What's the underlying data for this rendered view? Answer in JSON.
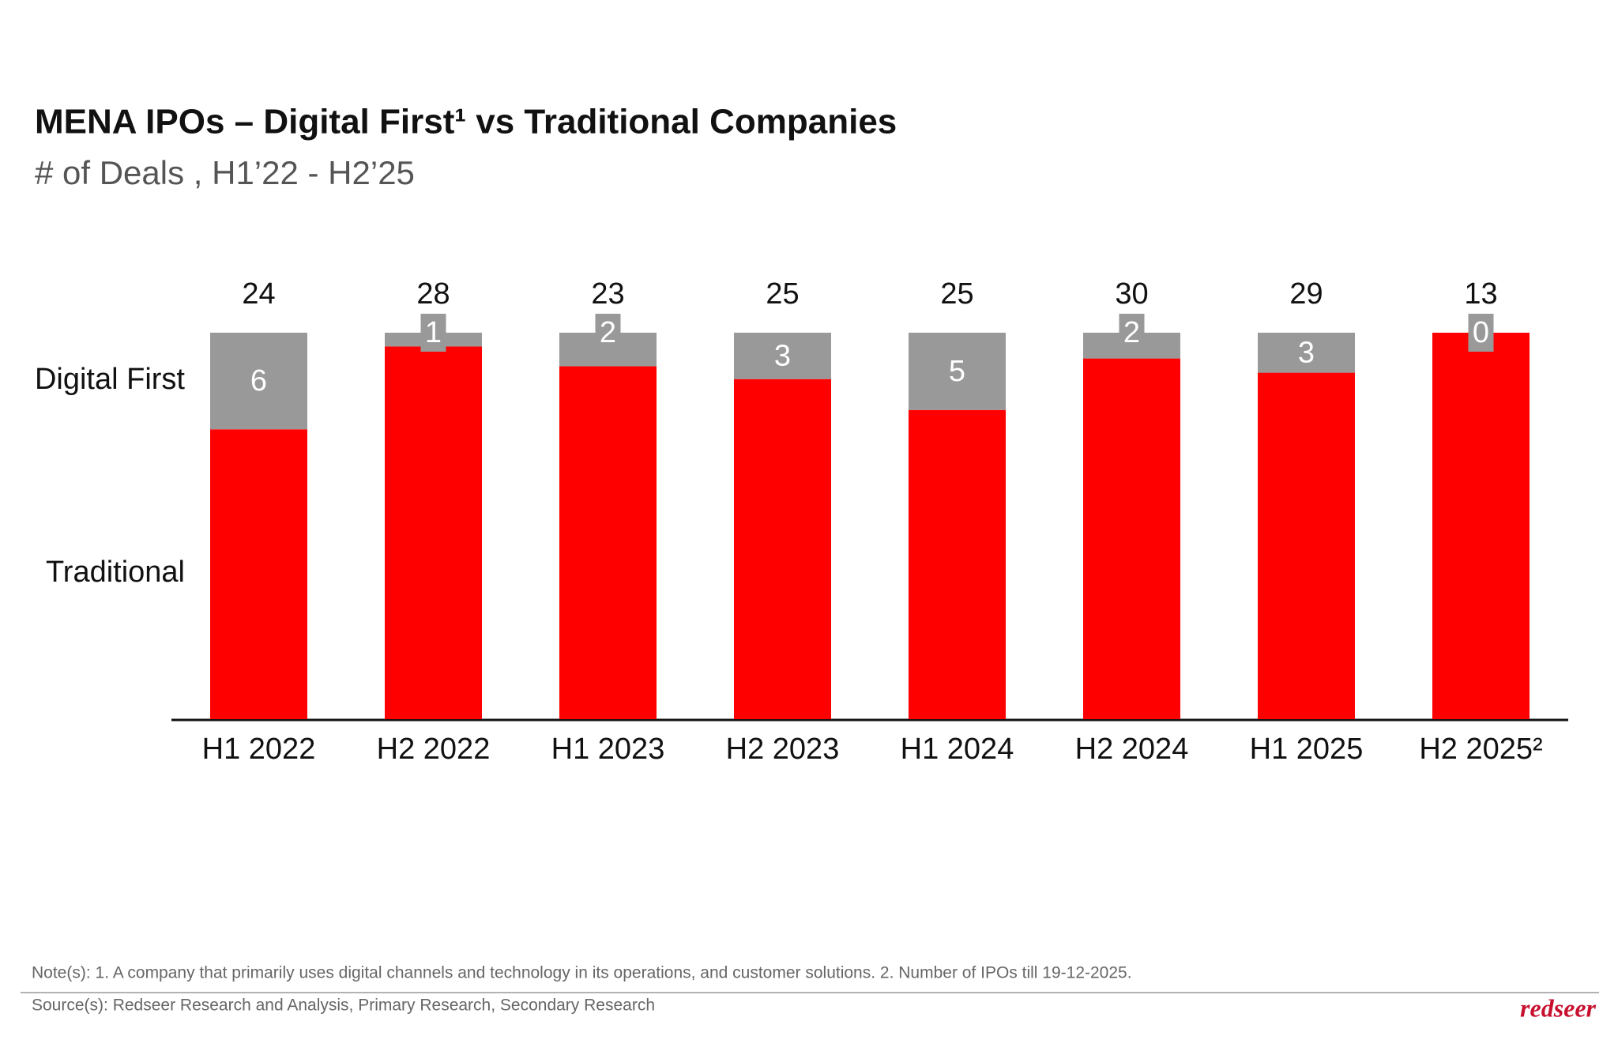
{
  "chart_data": {
    "type": "bar",
    "stacking": "percent",
    "title": "MENA IPOs – Digital First¹ vs Traditional Companies",
    "subtitle": "# of Deals , H1’22 - H2’25",
    "categories": [
      "H1 2022",
      "H2 2022",
      "H1 2023",
      "H2 2023",
      "H1 2024",
      "H2 2024",
      "H1 2025",
      "H2 2025²"
    ],
    "series": [
      {
        "name": "Traditional",
        "color": "#ff0000",
        "values": [
          18,
          27,
          21,
          22,
          20,
          28,
          26,
          13
        ]
      },
      {
        "name": "Digital First",
        "color": "#999999",
        "values": [
          6,
          1,
          2,
          3,
          5,
          2,
          3,
          0
        ]
      }
    ],
    "totals": [
      24,
      28,
      23,
      25,
      25,
      30,
      29,
      13
    ],
    "note": "Note(s): 1. A company that primarily uses digital channels and technology in its operations, and customer solutions. 2. Number of IPOs till 19-12-2025.",
    "source": "Source(s): Redseer Research and Analysis, Primary Research, Secondary Research",
    "logo": "redseer"
  }
}
